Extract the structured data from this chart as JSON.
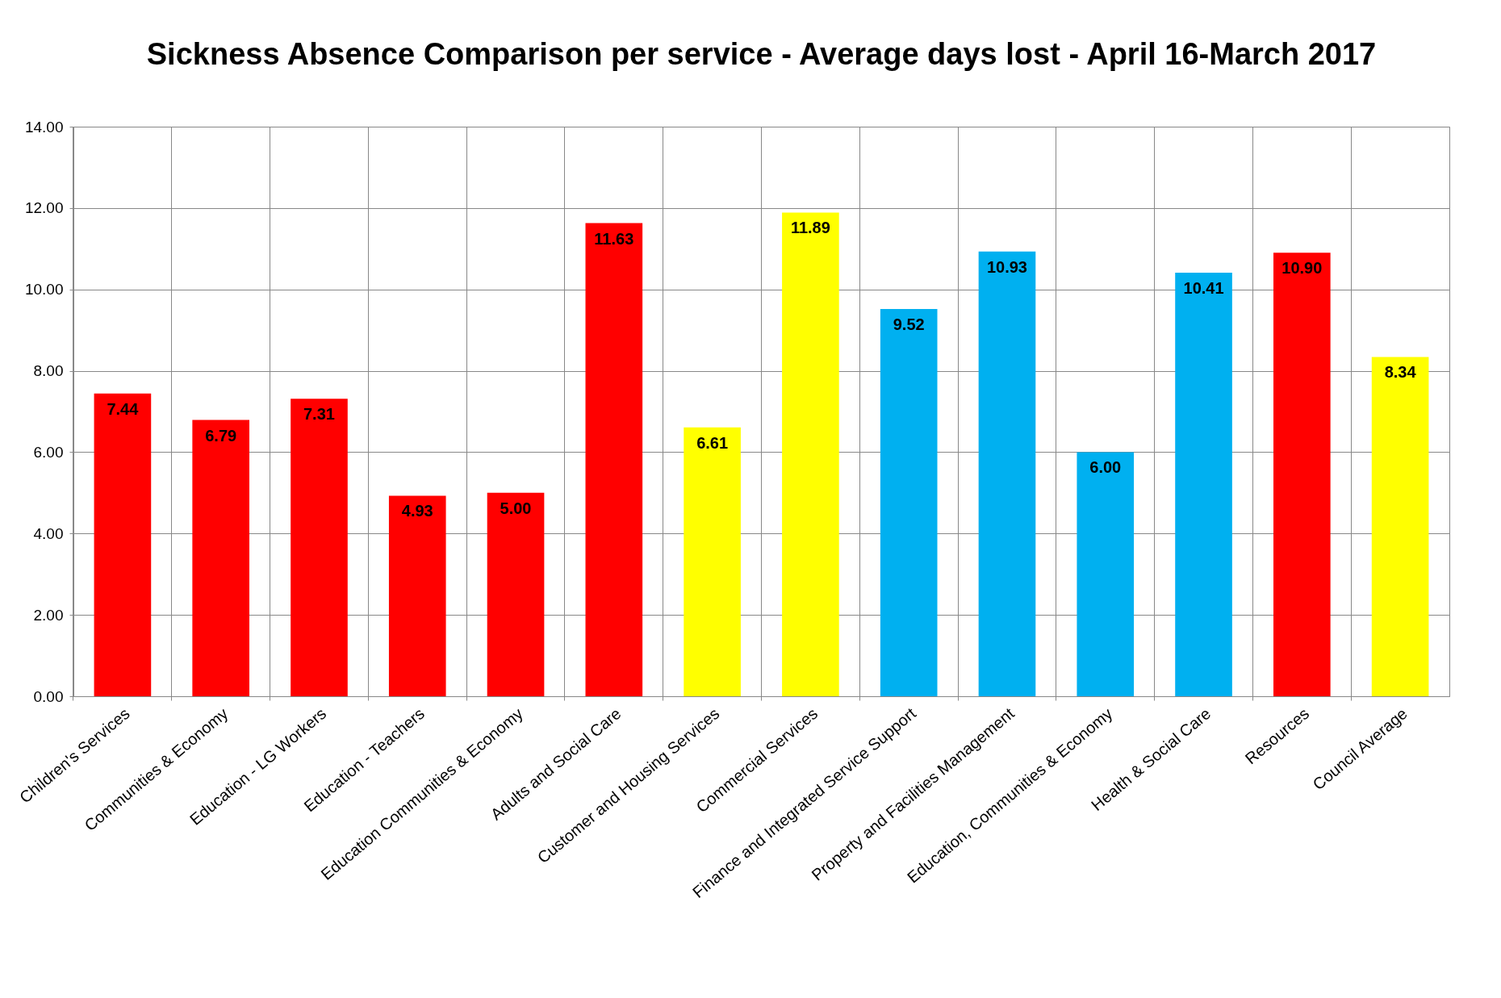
{
  "chart_data": {
    "type": "bar",
    "title": "Sickness Absence Comparison per service - Average days lost - April 16-March 2017",
    "categories": [
      "Children's Services",
      "Communities & Economy",
      "Education - LG Workers",
      "Education - Teachers",
      "Education Communities & Economy",
      "Adults and Social Care",
      "Customer and Housing Services",
      "Commercial Services",
      "Finance and Integrated Service Support",
      "Property and Facilities Management",
      "Education, Communities & Economy",
      "Health & Social Care",
      "Resources",
      "Council Average"
    ],
    "values": [
      7.44,
      6.79,
      7.31,
      4.93,
      5.0,
      11.63,
      6.61,
      11.89,
      9.52,
      10.93,
      6.0,
      10.41,
      10.9,
      8.34
    ],
    "colors": [
      "#ff0000",
      "#ff0000",
      "#ff0000",
      "#ff0000",
      "#ff0000",
      "#ff0000",
      "#ffff00",
      "#ffff00",
      "#00b0f0",
      "#00b0f0",
      "#00b0f0",
      "#00b0f0",
      "#ff0000",
      "#ffff00"
    ],
    "ylim": [
      0,
      14
    ],
    "yticks": [
      {
        "value": 0,
        "label": "0.00"
      },
      {
        "value": 2,
        "label": "2.00"
      },
      {
        "value": 4,
        "label": "4.00"
      },
      {
        "value": 6,
        "label": "6.00"
      },
      {
        "value": 8,
        "label": "8.00"
      },
      {
        "value": 10,
        "label": "10.00"
      },
      {
        "value": 12,
        "label": "12.00"
      },
      {
        "value": 14,
        "label": "14.00"
      }
    ],
    "grid": true,
    "value_labels": [
      "7.44",
      "6.79",
      "7.31",
      "4.93",
      "5.00",
      "11.63",
      "6.61",
      "11.89",
      "9.52",
      "10.93",
      "6.00",
      "10.41",
      "10.90",
      "8.34"
    ]
  }
}
